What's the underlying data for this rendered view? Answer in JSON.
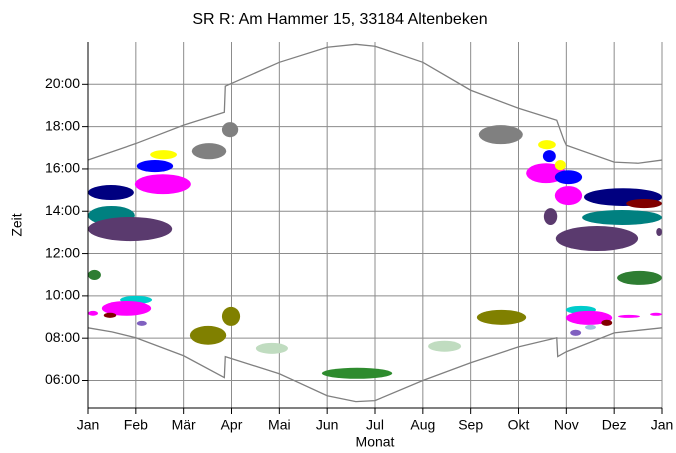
{
  "chart_data": {
    "type": "shadow",
    "title": "SR R: Am Hammer 15, 33184 Altenbeken",
    "x_label": "Monat",
    "y_label": "Zeit",
    "xlim": [
      0,
      12
    ],
    "xticks": [
      {
        "value": 0,
        "label": "Jan"
      },
      {
        "value": 1,
        "label": "Feb"
      },
      {
        "value": 2,
        "label": "Mär"
      },
      {
        "value": 3,
        "label": "Apr"
      },
      {
        "value": 4,
        "label": "Mai"
      },
      {
        "value": 5,
        "label": "Jun"
      },
      {
        "value": 6,
        "label": "Jul"
      },
      {
        "value": 7,
        "label": "Aug"
      },
      {
        "value": 8,
        "label": "Sep"
      },
      {
        "value": 9,
        "label": "Okt"
      },
      {
        "value": 10,
        "label": "Nov"
      },
      {
        "value": 11,
        "label": "Dez"
      },
      {
        "value": 12,
        "label": "Jan"
      }
    ],
    "ylim": [
      4.7,
      22
    ],
    "yticks": [
      {
        "value": 6,
        "label": "06:00"
      },
      {
        "value": 8,
        "label": "08:00"
      },
      {
        "value": 10,
        "label": "10:00"
      },
      {
        "value": 12,
        "label": "12:00"
      },
      {
        "value": 14,
        "label": "14:00"
      },
      {
        "value": 16,
        "label": "16:00"
      },
      {
        "value": 18,
        "label": "18:00"
      },
      {
        "value": 20,
        "label": "20:00"
      }
    ],
    "grid": true,
    "grid_color": "#8c8c8c",
    "series": [
      {
        "color": "#808080",
        "x": [
          0,
          1,
          2,
          2.85,
          2.87,
          4,
          5,
          5.6,
          6,
          7,
          8,
          9,
          9.8,
          9.95,
          10,
          11,
          11.5,
          12
        ],
        "values": [
          16.42,
          17.2,
          18.07,
          18.68,
          19.91,
          21.04,
          21.75,
          21.89,
          21.8,
          21.04,
          19.72,
          18.87,
          18.3,
          17.36,
          17.12,
          16.32,
          16.27,
          16.42
        ]
      },
      {
        "color": "#808080",
        "x": [
          0,
          0.5,
          1,
          2,
          2.85,
          2.87,
          4,
          5,
          5.6,
          6,
          7,
          8,
          9,
          9.8,
          9.82,
          10,
          11,
          12
        ],
        "values": [
          8.49,
          8.3,
          8.02,
          7.17,
          6.14,
          7.13,
          6.32,
          5.28,
          5.0,
          5.05,
          6.0,
          6.84,
          7.59,
          8.02,
          7.13,
          7.36,
          8.25,
          8.49
        ]
      }
    ],
    "shadows": [
      {
        "color": "#000080",
        "x": [
          0,
          0.96
        ],
        "y": [
          14.53,
          15.24
        ]
      },
      {
        "color": "#008080",
        "x": [
          0,
          0.98
        ],
        "y": [
          13.35,
          14.25
        ]
      },
      {
        "color": "#5a3a6e",
        "x": [
          0,
          1.76
        ],
        "y": [
          12.59,
          13.73
        ]
      },
      {
        "color": "#ffff00",
        "x": [
          1.3,
          1.86
        ],
        "y": [
          16.46,
          16.89
        ]
      },
      {
        "color": "#0000ff",
        "x": [
          1.02,
          1.78
        ],
        "y": [
          15.85,
          16.42
        ]
      },
      {
        "color": "#ff00ff",
        "x": [
          0.98,
          2.15
        ],
        "y": [
          14.81,
          15.75
        ]
      },
      {
        "color": "#808080",
        "x": [
          2.17,
          2.89
        ],
        "y": [
          16.46,
          17.22
        ]
      },
      {
        "color": "#808080",
        "x": [
          2.8,
          3.14
        ],
        "y": [
          17.5,
          18.21
        ]
      },
      {
        "color": "#2e7d32",
        "x": [
          0,
          0.27
        ],
        "y": [
          10.75,
          11.23
        ]
      },
      {
        "color": "#00cccc",
        "x": [
          0.67,
          1.34
        ],
        "y": [
          9.62,
          10.0
        ]
      },
      {
        "color": "#ff00ff",
        "x": [
          0.29,
          1.32
        ],
        "y": [
          9.06,
          9.76
        ]
      },
      {
        "color": "#800000",
        "x": [
          0.33,
          0.59
        ],
        "y": [
          8.96,
          9.2
        ]
      },
      {
        "color": "#ff00ff",
        "x": [
          0,
          0.21
        ],
        "y": [
          9.06,
          9.29
        ]
      },
      {
        "color": "#8060c0",
        "x": [
          1.02,
          1.23
        ],
        "y": [
          8.58,
          8.82
        ]
      },
      {
        "color": "#808000",
        "x": [
          2.13,
          2.89
        ],
        "y": [
          7.69,
          8.58
        ]
      },
      {
        "color": "#808000",
        "x": [
          2.8,
          3.18
        ],
        "y": [
          8.58,
          9.48
        ]
      },
      {
        "color": "#c0dcc0",
        "x": [
          3.51,
          4.18
        ],
        "y": [
          7.26,
          7.78
        ]
      },
      {
        "color": "#2e8b2e",
        "x": [
          4.89,
          6.36
        ],
        "y": [
          6.08,
          6.6
        ]
      },
      {
        "color": "#c0dcc0",
        "x": [
          7.11,
          7.8
        ],
        "y": [
          7.36,
          7.88
        ]
      },
      {
        "color": "#808000",
        "x": [
          8.13,
          9.16
        ],
        "y": [
          8.63,
          9.34
        ]
      },
      {
        "color": "#808080",
        "x": [
          8.17,
          9.09
        ],
        "y": [
          17.17,
          18.07
        ]
      },
      {
        "color": "#ffff00",
        "x": [
          9.41,
          9.78
        ],
        "y": [
          16.93,
          17.36
        ]
      },
      {
        "color": "#0000ff",
        "x": [
          9.51,
          9.78
        ],
        "y": [
          16.32,
          16.89
        ]
      },
      {
        "color": "#ff00ff",
        "x": [
          9.16,
          9.99
        ],
        "y": [
          15.33,
          16.27
        ]
      },
      {
        "color": "#0000ff",
        "x": [
          9.76,
          10.33
        ],
        "y": [
          15.28,
          15.94
        ]
      },
      {
        "color": "#ff00ff",
        "x": [
          9.76,
          10.33
        ],
        "y": [
          14.29,
          15.19
        ]
      },
      {
        "color": "#ffff00",
        "x": [
          9.76,
          9.99
        ],
        "y": [
          15.94,
          16.42
        ]
      },
      {
        "color": "#5a3a6e",
        "x": [
          9.53,
          9.81
        ],
        "y": [
          13.35,
          14.15
        ]
      },
      {
        "color": "#5a3a6e",
        "x": [
          9.78,
          11.5
        ],
        "y": [
          12.12,
          13.3
        ]
      },
      {
        "color": "#000080",
        "x": [
          10.37,
          12
        ],
        "y": [
          14.25,
          15.09
        ]
      },
      {
        "color": "#800000",
        "x": [
          11.25,
          12
        ],
        "y": [
          14.15,
          14.58
        ]
      },
      {
        "color": "#008080",
        "x": [
          10.33,
          12
        ],
        "y": [
          13.35,
          14.06
        ]
      },
      {
        "color": "#5a3a6e",
        "x": [
          11.88,
          12
        ],
        "y": [
          12.83,
          13.21
        ]
      },
      {
        "color": "#2e7d32",
        "x": [
          11.06,
          12
        ],
        "y": [
          10.52,
          11.18
        ]
      },
      {
        "color": "#00cccc",
        "x": [
          9.99,
          10.62
        ],
        "y": [
          9.15,
          9.53
        ]
      },
      {
        "color": "#ff00ff",
        "x": [
          9.99,
          10.96
        ],
        "y": [
          8.63,
          9.29
        ]
      },
      {
        "color": "#800000",
        "x": [
          10.73,
          10.96
        ],
        "y": [
          8.58,
          8.87
        ]
      },
      {
        "color": "#8060c0",
        "x": [
          10.08,
          10.31
        ],
        "y": [
          8.11,
          8.4
        ]
      },
      {
        "color": "#a0c0e0",
        "x": [
          10.39,
          10.62
        ],
        "y": [
          8.4,
          8.63
        ]
      },
      {
        "color": "#ff00ff",
        "x": [
          11.08,
          11.54
        ],
        "y": [
          8.96,
          9.1
        ]
      },
      {
        "color": "#ff00ff",
        "x": [
          11.75,
          12
        ],
        "y": [
          9.06,
          9.2
        ]
      }
    ]
  }
}
